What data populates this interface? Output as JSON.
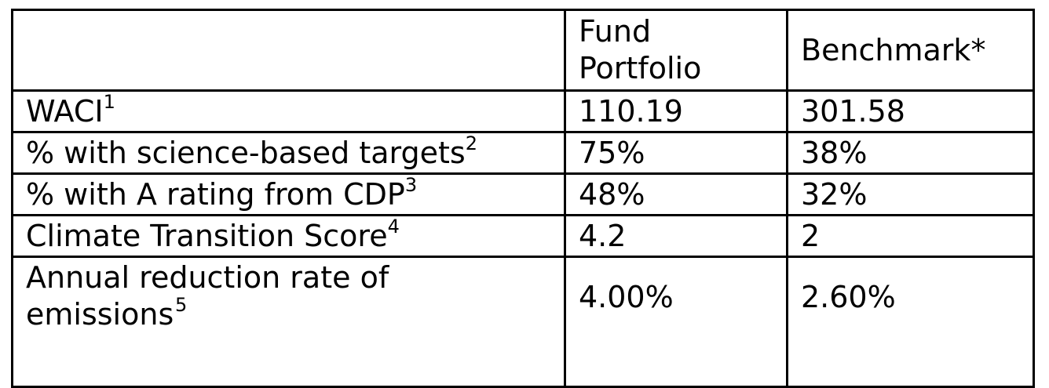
{
  "table": {
    "headers": [
      "",
      "Fund Portfolio",
      "Benchmark*"
    ],
    "rows": [
      {
        "label": "WACI",
        "sup": "1",
        "fund": "110.19",
        "benchmark": "301.58"
      },
      {
        "label": "% with science-based targets",
        "sup": "2",
        "fund": "75%",
        "benchmark": "38%"
      },
      {
        "label": "% with A rating from CDP",
        "sup": "3",
        "fund": "48%",
        "benchmark": "32%"
      },
      {
        "label": "Climate Transition Score",
        "sup": "4",
        "fund": "4.2",
        "benchmark": "2"
      },
      {
        "label": "Annual reduction rate of emissions",
        "sup": "5",
        "fund": "4.00%",
        "benchmark": "2.60%"
      }
    ]
  }
}
